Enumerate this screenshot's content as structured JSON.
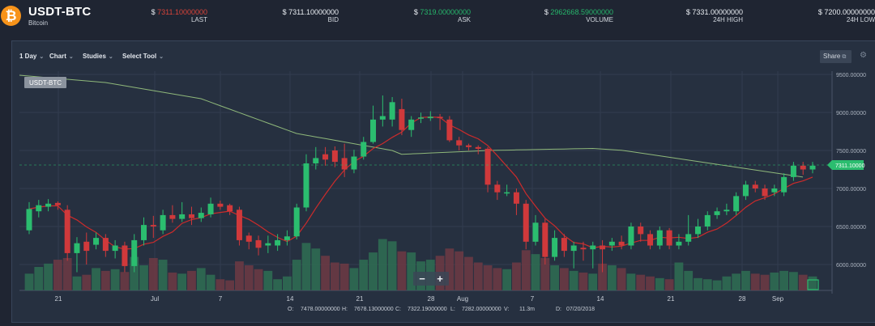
{
  "header": {
    "pair": "USDT-BTC",
    "coin_name": "Bitcoin",
    "coin_icon": "bitcoin-icon",
    "stats": [
      {
        "value": "7311.10000000",
        "prefix": "$",
        "label": "LAST",
        "color": "#d9443a"
      },
      {
        "value": "7311.10000000",
        "prefix": "$",
        "label": "BID",
        "color": "#e9edf2"
      },
      {
        "value": "7319.00000000",
        "prefix": "$",
        "label": "ASK",
        "color": "#26b66b"
      },
      {
        "value": "2962668.59000000",
        "prefix": "$",
        "label": "VOLUME",
        "color": "#26b66b"
      },
      {
        "value": "7331.00000000",
        "prefix": "$",
        "label": "24H HIGH",
        "color": "#e9edf2"
      },
      {
        "value": "7200.00000000",
        "prefix": "$",
        "label": "24H LOW",
        "color": "#e9edf2"
      }
    ]
  },
  "toolbar": {
    "interval": "1 Day",
    "chart": "Chart",
    "studies": "Studies",
    "select_tool": "Select Tool",
    "share": "Share"
  },
  "chart_data": {
    "type": "candlestick",
    "symbol_label": "USDT-BTC",
    "y_ticks": [
      "9500.00000",
      "9000.00000",
      "7500.00000",
      "7000.00000",
      "6500.00000",
      "6000.00000"
    ],
    "x_ticks": [
      "21",
      "Jul",
      "7",
      "14",
      "21",
      "28",
      "Aug",
      "7",
      "14",
      "21",
      "28",
      "Sep"
    ],
    "last_price_label": "7311.10000",
    "ohlc_readout": {
      "o_label": "O:",
      "o": "7478.00000000",
      "h_label": "H:",
      "h": "7678.13000000",
      "c_label": "C:",
      "c": "7322.19000000",
      "l_label": "L:",
      "l": "7282.00000000",
      "v_label": "V:",
      "v": "11.3m",
      "d_label": "D:",
      "d": "07/20/2018"
    },
    "zoom_out": "−",
    "zoom_in": "+",
    "candles": [
      {
        "o": 6450,
        "c": 6730,
        "h": 6820,
        "l": 6400
      },
      {
        "o": 6700,
        "c": 6780,
        "h": 6850,
        "l": 6620
      },
      {
        "o": 6760,
        "c": 6800,
        "h": 6860,
        "l": 6700
      },
      {
        "o": 6810,
        "c": 6780,
        "h": 6830,
        "l": 6720
      },
      {
        "o": 6720,
        "c": 6150,
        "h": 6780,
        "l": 6050
      },
      {
        "o": 6150,
        "c": 6280,
        "h": 6360,
        "l": 5900
      },
      {
        "o": 6300,
        "c": 6180,
        "h": 6420,
        "l": 6000
      },
      {
        "o": 6260,
        "c": 6350,
        "h": 6420,
        "l": 6200
      },
      {
        "o": 6350,
        "c": 6180,
        "h": 6400,
        "l": 6100
      },
      {
        "o": 6180,
        "c": 6250,
        "h": 6320,
        "l": 6080
      },
      {
        "o": 6250,
        "c": 5980,
        "h": 6300,
        "l": 5900
      },
      {
        "o": 5980,
        "c": 6320,
        "h": 6400,
        "l": 5900
      },
      {
        "o": 6320,
        "c": 6520,
        "h": 6620,
        "l": 6250
      },
      {
        "o": 6520,
        "c": 6500,
        "h": 6640,
        "l": 6350
      },
      {
        "o": 6450,
        "c": 6650,
        "h": 6720,
        "l": 6400
      },
      {
        "o": 6650,
        "c": 6600,
        "h": 6780,
        "l": 6550
      },
      {
        "o": 6600,
        "c": 6660,
        "h": 6820,
        "l": 6560
      },
      {
        "o": 6660,
        "c": 6610,
        "h": 6760,
        "l": 6520
      },
      {
        "o": 6610,
        "c": 6680,
        "h": 6750,
        "l": 6560
      },
      {
        "o": 6660,
        "c": 6800,
        "h": 6880,
        "l": 6620
      },
      {
        "o": 6800,
        "c": 6760,
        "h": 6840,
        "l": 6720
      },
      {
        "o": 6780,
        "c": 6700,
        "h": 6800,
        "l": 6650
      },
      {
        "o": 6720,
        "c": 6320,
        "h": 6760,
        "l": 6250
      },
      {
        "o": 6380,
        "c": 6300,
        "h": 6420,
        "l": 6200
      },
      {
        "o": 6320,
        "c": 6220,
        "h": 6380,
        "l": 6120
      },
      {
        "o": 6250,
        "c": 6280,
        "h": 6380,
        "l": 6150
      },
      {
        "o": 6250,
        "c": 6320,
        "h": 6400,
        "l": 6180
      },
      {
        "o": 6320,
        "c": 6370,
        "h": 6450,
        "l": 6250
      },
      {
        "o": 6370,
        "c": 6750,
        "h": 6800,
        "l": 6330
      },
      {
        "o": 6750,
        "c": 7330,
        "h": 7450,
        "l": 6700
      },
      {
        "o": 7330,
        "c": 7400,
        "h": 7600,
        "l": 7250
      },
      {
        "o": 7450,
        "c": 7380,
        "h": 7600,
        "l": 7300
      },
      {
        "o": 7500,
        "c": 7350,
        "h": 7620,
        "l": 7280
      },
      {
        "o": 7400,
        "c": 7250,
        "h": 7700,
        "l": 7150
      },
      {
        "o": 7250,
        "c": 7420,
        "h": 7520,
        "l": 7200
      },
      {
        "o": 7420,
        "c": 7750,
        "h": 7900,
        "l": 7380
      },
      {
        "o": 7750,
        "c": 8200,
        "h": 8400,
        "l": 7700
      },
      {
        "o": 8200,
        "c": 8250,
        "h": 8600,
        "l": 8100
      },
      {
        "o": 8200,
        "c": 8450,
        "h": 8550,
        "l": 8100
      },
      {
        "o": 8350,
        "c": 8050,
        "h": 8500,
        "l": 7950
      },
      {
        "o": 8050,
        "c": 8200,
        "h": 8250,
        "l": 7900
      },
      {
        "o": 8220,
        "c": 8230,
        "h": 8300,
        "l": 8150
      },
      {
        "o": 8220,
        "c": 8240,
        "h": 8320,
        "l": 8180
      },
      {
        "o": 8240,
        "c": 8220,
        "h": 8280,
        "l": 8050
      },
      {
        "o": 8200,
        "c": 7800,
        "h": 8250,
        "l": 7750
      },
      {
        "o": 7800,
        "c": 7650,
        "h": 7900,
        "l": 7500
      },
      {
        "o": 7650,
        "c": 7600,
        "h": 7700,
        "l": 7500
      },
      {
        "o": 7600,
        "c": 7550,
        "h": 7650,
        "l": 7450
      },
      {
        "o": 7550,
        "c": 7050,
        "h": 7600,
        "l": 6950
      },
      {
        "o": 7050,
        "c": 6950,
        "h": 7100,
        "l": 6850
      },
      {
        "o": 6950,
        "c": 6950,
        "h": 7050,
        "l": 6900
      },
      {
        "o": 6950,
        "c": 6800,
        "h": 7000,
        "l": 6650
      },
      {
        "o": 6800,
        "c": 6300,
        "h": 6850,
        "l": 6200
      },
      {
        "o": 6300,
        "c": 6550,
        "h": 6650,
        "l": 6250
      },
      {
        "o": 6550,
        "c": 6100,
        "h": 6600,
        "l": 6000
      },
      {
        "o": 6100,
        "c": 6350,
        "h": 6450,
        "l": 6050
      },
      {
        "o": 6350,
        "c": 6180,
        "h": 6400,
        "l": 6100
      },
      {
        "o": 6180,
        "c": 6250,
        "h": 6300,
        "l": 5950
      },
      {
        "o": 6220,
        "c": 6200,
        "h": 6300,
        "l": 6050
      },
      {
        "o": 6200,
        "c": 6250,
        "h": 6300,
        "l": 5950
      },
      {
        "o": 6250,
        "c": 6200,
        "h": 6320,
        "l": 5900
      },
      {
        "o": 6250,
        "c": 6300,
        "h": 6350,
        "l": 6180
      },
      {
        "o": 6300,
        "c": 6250,
        "h": 6380,
        "l": 6200
      },
      {
        "o": 6250,
        "c": 6500,
        "h": 6550,
        "l": 6200
      },
      {
        "o": 6500,
        "c": 6400,
        "h": 6550,
        "l": 6300
      },
      {
        "o": 6400,
        "c": 6250,
        "h": 6450,
        "l": 6200
      },
      {
        "o": 6250,
        "c": 6450,
        "h": 6500,
        "l": 6200
      },
      {
        "o": 6450,
        "c": 6250,
        "h": 6480,
        "l": 6200
      },
      {
        "o": 6250,
        "c": 6300,
        "h": 6400,
        "l": 6200
      },
      {
        "o": 6300,
        "c": 6400,
        "h": 6650,
        "l": 6250
      },
      {
        "o": 6400,
        "c": 6500,
        "h": 6600,
        "l": 6350
      },
      {
        "o": 6500,
        "c": 6650,
        "h": 6700,
        "l": 6450
      },
      {
        "o": 6650,
        "c": 6700,
        "h": 6750,
        "l": 6600
      },
      {
        "o": 6700,
        "c": 6720,
        "h": 6800,
        "l": 6650
      },
      {
        "o": 6700,
        "c": 6900,
        "h": 6950,
        "l": 6650
      },
      {
        "o": 6900,
        "c": 7050,
        "h": 7100,
        "l": 6850
      },
      {
        "o": 7050,
        "c": 7000,
        "h": 7100,
        "l": 6950
      },
      {
        "o": 7000,
        "c": 6900,
        "h": 7050,
        "l": 6850
      },
      {
        "o": 6950,
        "c": 7000,
        "h": 7050,
        "l": 6900
      },
      {
        "o": 6950,
        "c": 7150,
        "h": 7200,
        "l": 6900
      },
      {
        "o": 7150,
        "c": 7300,
        "h": 7350,
        "l": 7100
      },
      {
        "o": 7300,
        "c": 7250,
        "h": 7350,
        "l": 7180
      },
      {
        "o": 7250,
        "c": 7300,
        "h": 7350,
        "l": 7200
      }
    ],
    "volumes": [
      0.3,
      0.42,
      0.48,
      0.55,
      0.58,
      0.25,
      0.28,
      0.4,
      0.35,
      0.38,
      0.33,
      0.6,
      0.45,
      0.58,
      0.55,
      0.32,
      0.3,
      0.35,
      0.4,
      0.28,
      0.2,
      0.18,
      0.52,
      0.45,
      0.38,
      0.35,
      0.2,
      0.25,
      0.55,
      0.85,
      0.75,
      0.62,
      0.5,
      0.48,
      0.4,
      0.55,
      0.68,
      0.92,
      0.88,
      0.7,
      0.68,
      0.52,
      0.55,
      0.62,
      0.75,
      0.7,
      0.6,
      0.5,
      0.45,
      0.4,
      0.38,
      0.5,
      0.72,
      0.65,
      0.58,
      0.45,
      0.4,
      0.35,
      0.32,
      0.3,
      0.48,
      0.45,
      0.4,
      0.3,
      0.28,
      0.25,
      0.22,
      0.2,
      0.5,
      0.35,
      0.22,
      0.2,
      0.18,
      0.25,
      0.3,
      0.35,
      0.3,
      0.28,
      0.32,
      0.35,
      0.33,
      0.28,
      0.25
    ],
    "series": [
      {
        "kind": "moving-average",
        "color": "#cc2b2b"
      },
      {
        "kind": "moving-average",
        "color": "#8fb87a"
      }
    ]
  }
}
